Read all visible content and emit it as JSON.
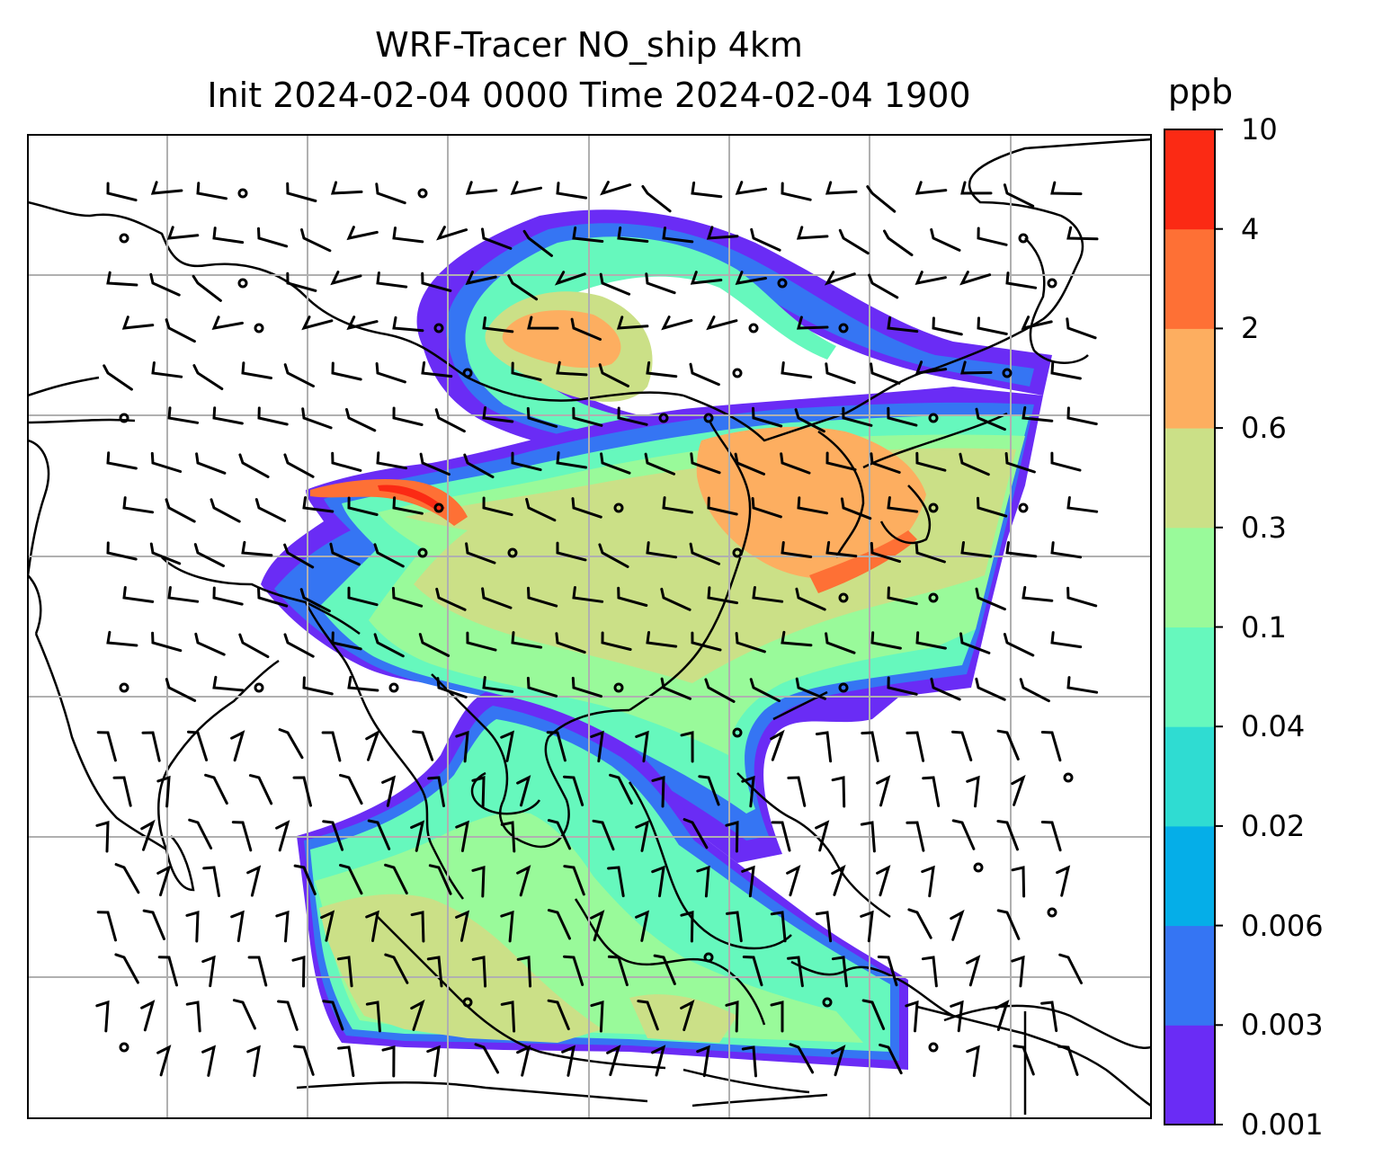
{
  "title": {
    "line1": "WRF-Tracer NO_ship 4km",
    "line2": "Init 2024-02-04 0000 Time 2024-02-04 1900"
  },
  "colorbar": {
    "unit": "ppb",
    "ticks": [
      "0.001",
      "0.003",
      "0.006",
      "0.02",
      "0.04",
      "0.1",
      "0.3",
      "0.6",
      "2",
      "4",
      "10"
    ],
    "colors": [
      "#6a2cf5",
      "#3575f3",
      "#05aee8",
      "#2fdcd2",
      "#66f8bd",
      "#99fa9a",
      "#cbe087",
      "#fdae60",
      "#fe7035",
      "#fb2a14"
    ]
  },
  "map": {
    "field": "NO_ship",
    "grid": "on",
    "gridline_color": "#b0b0b0",
    "coastline_color": "#000000"
  }
}
